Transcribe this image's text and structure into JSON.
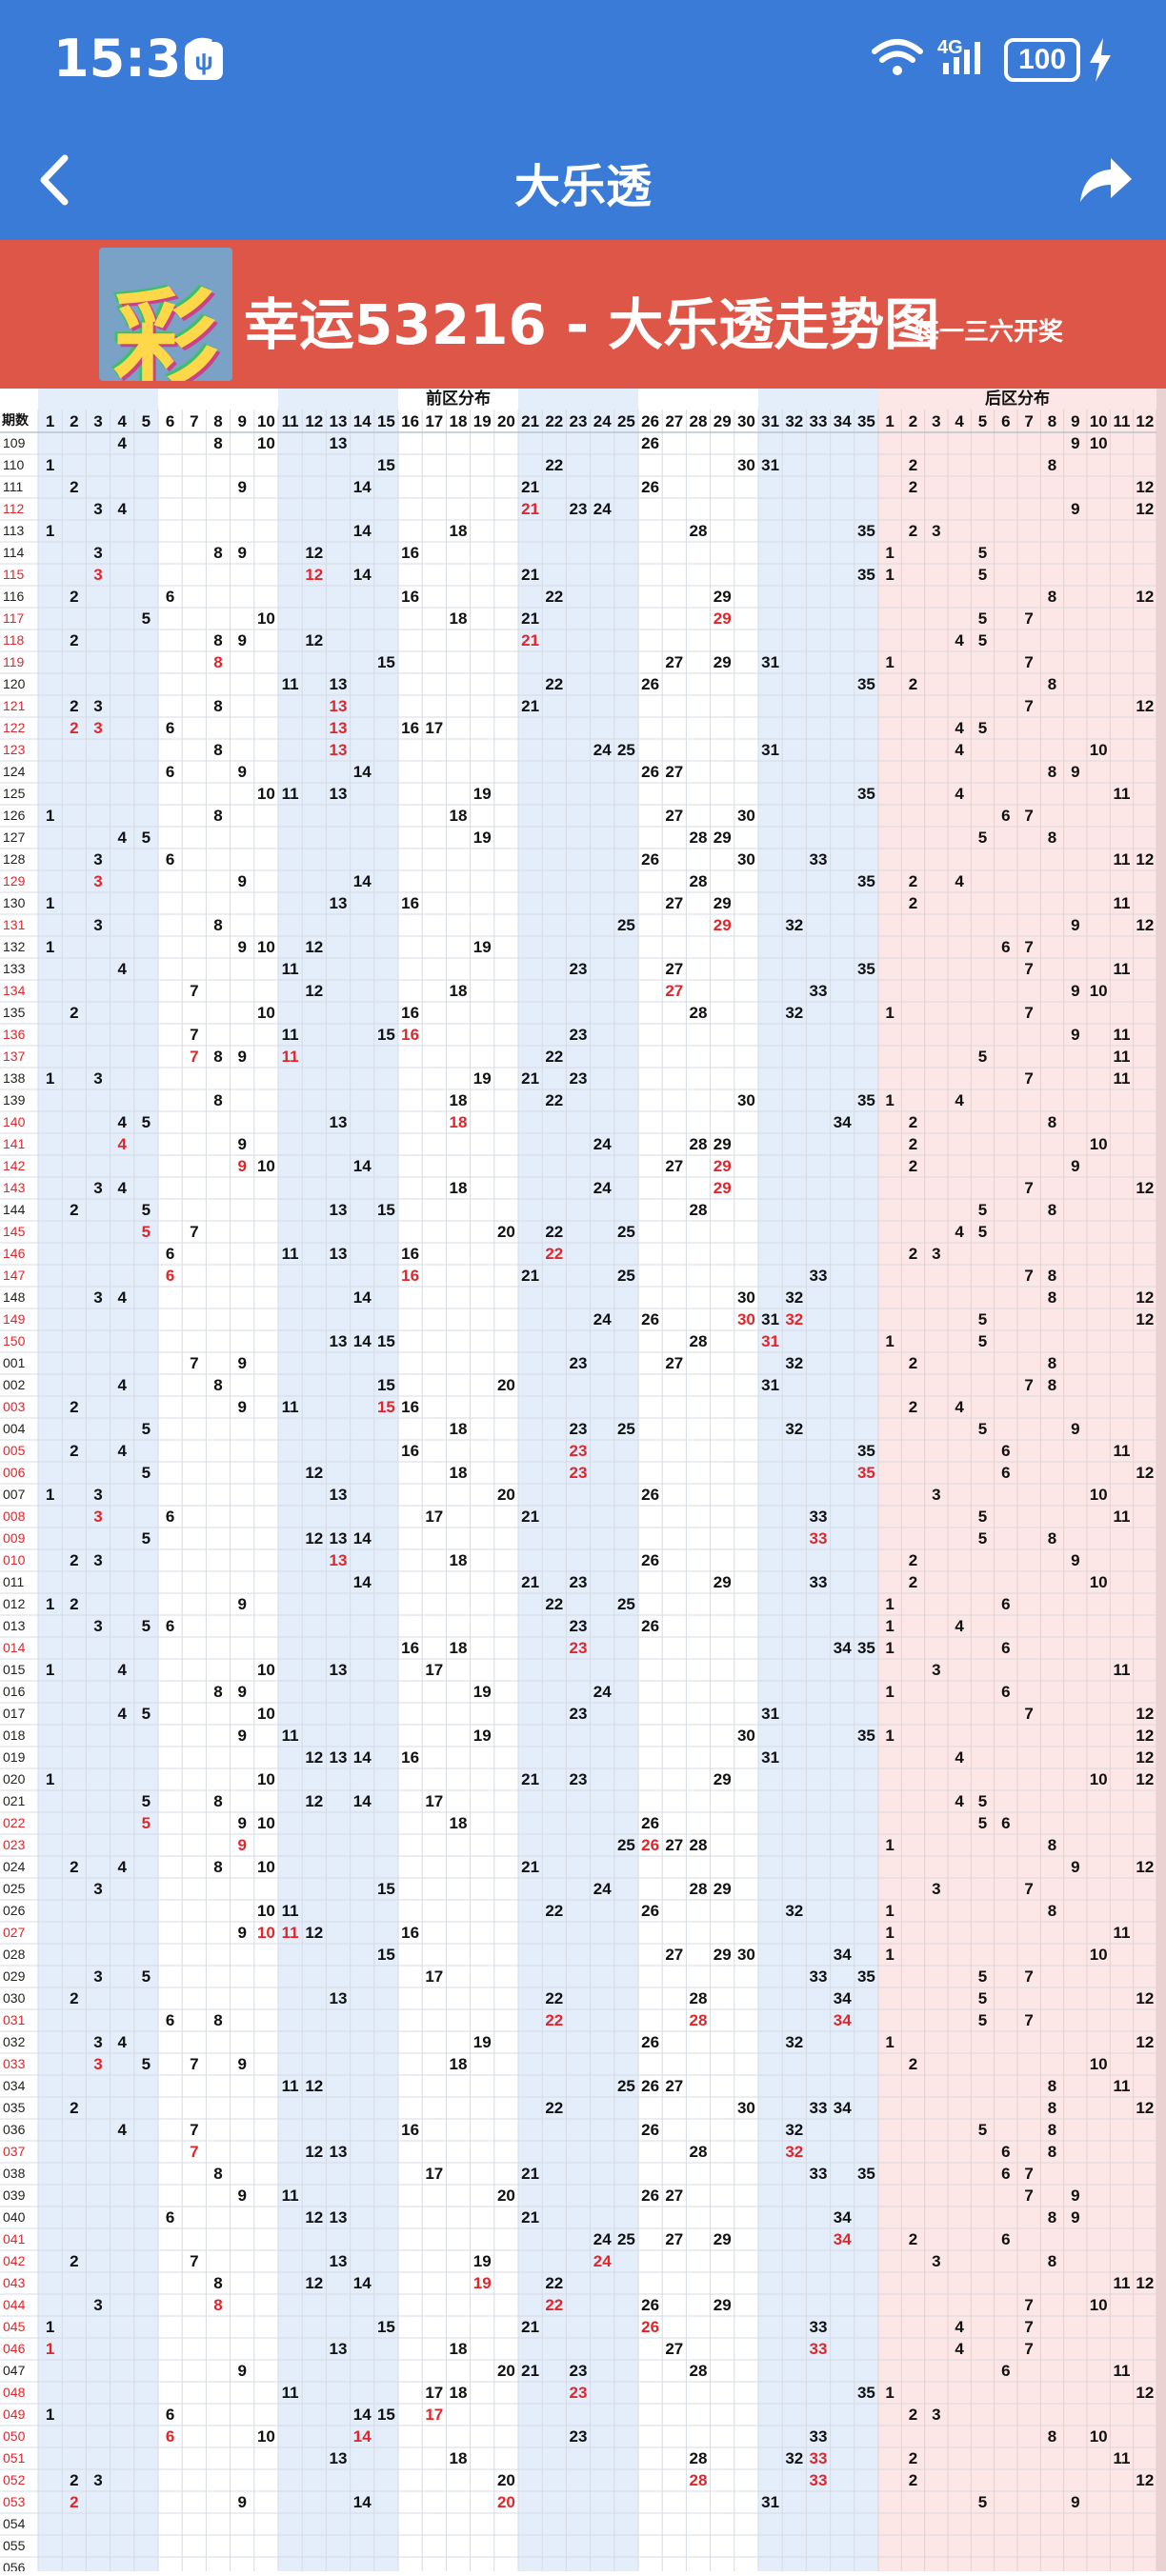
{
  "status_bar": {
    "time": "15:36",
    "usb_icon": "usb-icon",
    "network_label": "4G",
    "battery": "100",
    "icons": [
      "wifi-icon",
      "signal-icon",
      "charging-icon"
    ]
  },
  "nav": {
    "title": "大乐透",
    "back_icon": "back-arrow-icon",
    "share_icon": "share-icon"
  },
  "banner": {
    "logo_text": "彩",
    "title": "幸运53216 - 大乐透走势图",
    "subtitle": "每一三六开奖"
  },
  "table": {
    "period_label": "期数",
    "front_label": "前区分布",
    "back_label": "后区分布",
    "front_numbers": [
      "1",
      "2",
      "3",
      "4",
      "5",
      "6",
      "7",
      "8",
      "9",
      "10",
      "11",
      "12",
      "13",
      "14",
      "15",
      "16",
      "17",
      "18",
      "19",
      "20",
      "21",
      "22",
      "23",
      "24",
      "25",
      "26",
      "27",
      "28",
      "29",
      "30",
      "31",
      "32",
      "33",
      "34",
      "35"
    ],
    "back_numbers": [
      "1",
      "2",
      "3",
      "4",
      "5",
      "6",
      "7",
      "8",
      "9",
      "10",
      "11",
      "12"
    ],
    "colors": {
      "header_blue": "#3b7bd8",
      "banner_red": "#de5647",
      "front_zone_tint": "#e4eefb",
      "back_zone_tint": "#fde6e6",
      "repeat_red": "#e0262b",
      "normal_text": "#111111"
    },
    "rows": [
      {
        "p": "109",
        "f": [
          4,
          8,
          10,
          13,
          26
        ],
        "b": [
          9,
          10
        ]
      },
      {
        "p": "110",
        "f": [
          1,
          15,
          22,
          30,
          31
        ],
        "b": [
          2,
          8
        ]
      },
      {
        "p": "111",
        "f": [
          2,
          9,
          14,
          21,
          26
        ],
        "b": [
          2,
          12
        ]
      },
      {
        "p": "112",
        "f": [
          3,
          4,
          21,
          23,
          24
        ],
        "b": [
          9,
          12
        ]
      },
      {
        "p": "113",
        "f": [
          1,
          14,
          18,
          28,
          35
        ],
        "b": [
          2,
          3
        ]
      },
      {
        "p": "114",
        "f": [
          3,
          8,
          9,
          12,
          16
        ],
        "b": [
          1,
          5
        ]
      },
      {
        "p": "115",
        "f": [
          3,
          12,
          14,
          21,
          35
        ],
        "b": [
          1,
          5
        ]
      },
      {
        "p": "116",
        "f": [
          2,
          6,
          16,
          22,
          29
        ],
        "b": [
          8,
          12
        ]
      },
      {
        "p": "117",
        "f": [
          5,
          10,
          18,
          21,
          29
        ],
        "b": [
          5,
          7
        ]
      },
      {
        "p": "118",
        "f": [
          2,
          8,
          9,
          12,
          21
        ],
        "b": [
          4,
          5
        ]
      },
      {
        "p": "119",
        "f": [
          8,
          15,
          27,
          29,
          31
        ],
        "b": [
          1,
          7
        ]
      },
      {
        "p": "120",
        "f": [
          11,
          13,
          22,
          26,
          35
        ],
        "b": [
          2,
          8
        ]
      },
      {
        "p": "121",
        "f": [
          2,
          3,
          8,
          13,
          21
        ],
        "b": [
          7,
          12
        ]
      },
      {
        "p": "122",
        "f": [
          2,
          3,
          6,
          13,
          16,
          17
        ],
        "b": [
          4,
          5
        ]
      },
      {
        "p": "123",
        "f": [
          8,
          13,
          24,
          25,
          31
        ],
        "b": [
          4,
          10
        ]
      },
      {
        "p": "124",
        "f": [
          6,
          9,
          14,
          26,
          27
        ],
        "b": [
          8,
          9
        ]
      },
      {
        "p": "125",
        "f": [
          10,
          11,
          13,
          19,
          35
        ],
        "b": [
          4,
          11
        ]
      },
      {
        "p": "126",
        "f": [
          1,
          8,
          18,
          27,
          30
        ],
        "b": [
          6,
          7
        ]
      },
      {
        "p": "127",
        "f": [
          4,
          5,
          19,
          28,
          29
        ],
        "b": [
          5,
          8
        ]
      },
      {
        "p": "128",
        "f": [
          3,
          6,
          26,
          30,
          33
        ],
        "b": [
          11,
          12
        ]
      },
      {
        "p": "129",
        "f": [
          3,
          9,
          14,
          28,
          35
        ],
        "b": [
          2,
          4
        ]
      },
      {
        "p": "130",
        "f": [
          1,
          13,
          16,
          27,
          29
        ],
        "b": [
          2,
          11
        ]
      },
      {
        "p": "131",
        "f": [
          3,
          8,
          25,
          29,
          32
        ],
        "b": [
          9,
          12
        ]
      },
      {
        "p": "132",
        "f": [
          1,
          9,
          10,
          12,
          19
        ],
        "b": [
          6,
          7
        ]
      },
      {
        "p": "133",
        "f": [
          4,
          11,
          23,
          27,
          35
        ],
        "b": [
          7,
          11
        ]
      },
      {
        "p": "134",
        "f": [
          7,
          12,
          18,
          27,
          33
        ],
        "b": [
          9,
          10
        ]
      },
      {
        "p": "135",
        "f": [
          2,
          10,
          16,
          28,
          32
        ],
        "b": [
          1,
          7
        ]
      },
      {
        "p": "136",
        "f": [
          7,
          11,
          15,
          16,
          23
        ],
        "b": [
          9,
          11
        ]
      },
      {
        "p": "137",
        "f": [
          7,
          8,
          9,
          11,
          22
        ],
        "b": [
          5,
          11
        ]
      },
      {
        "p": "138",
        "f": [
          1,
          3,
          19,
          21,
          23
        ],
        "b": [
          7,
          11
        ]
      },
      {
        "p": "139",
        "f": [
          8,
          18,
          22,
          30,
          35
        ],
        "b": [
          1,
          4
        ]
      },
      {
        "p": "140",
        "f": [
          4,
          5,
          13,
          18,
          34
        ],
        "b": [
          2,
          8
        ]
      },
      {
        "p": "141",
        "f": [
          4,
          9,
          24,
          28,
          29
        ],
        "b": [
          2,
          10
        ]
      },
      {
        "p": "142",
        "f": [
          9,
          10,
          14,
          27,
          29
        ],
        "b": [
          2,
          9
        ]
      },
      {
        "p": "143",
        "f": [
          3,
          4,
          18,
          24,
          29
        ],
        "b": [
          7,
          12
        ]
      },
      {
        "p": "144",
        "f": [
          2,
          5,
          13,
          15,
          28
        ],
        "b": [
          5,
          8
        ]
      },
      {
        "p": "145",
        "f": [
          5,
          7,
          20,
          22,
          25
        ],
        "b": [
          4,
          5
        ]
      },
      {
        "p": "146",
        "f": [
          6,
          11,
          13,
          16,
          22
        ],
        "b": [
          2,
          3
        ]
      },
      {
        "p": "147",
        "f": [
          6,
          16,
          21,
          25,
          33
        ],
        "b": [
          7,
          8
        ]
      },
      {
        "p": "148",
        "f": [
          3,
          4,
          14,
          30,
          32
        ],
        "b": [
          8,
          12
        ]
      },
      {
        "p": "149",
        "f": [
          24,
          26,
          30,
          31,
          32
        ],
        "b": [
          5,
          12
        ]
      },
      {
        "p": "150",
        "f": [
          13,
          14,
          15,
          28,
          31
        ],
        "b": [
          1,
          5
        ]
      },
      {
        "p": "001",
        "f": [
          7,
          9,
          23,
          27,
          32
        ],
        "b": [
          2,
          8
        ]
      },
      {
        "p": "002",
        "f": [
          4,
          8,
          15,
          20,
          31
        ],
        "b": [
          7,
          8
        ]
      },
      {
        "p": "003",
        "f": [
          2,
          9,
          11,
          15,
          16
        ],
        "b": [
          2,
          4
        ]
      },
      {
        "p": "004",
        "f": [
          5,
          18,
          23,
          25,
          32
        ],
        "b": [
          5,
          9
        ]
      },
      {
        "p": "005",
        "f": [
          2,
          4,
          16,
          23,
          35
        ],
        "b": [
          6,
          11
        ]
      },
      {
        "p": "006",
        "f": [
          5,
          12,
          18,
          23,
          35
        ],
        "b": [
          6,
          12
        ]
      },
      {
        "p": "007",
        "f": [
          1,
          3,
          13,
          20,
          26
        ],
        "b": [
          3,
          10
        ]
      },
      {
        "p": "008",
        "f": [
          3,
          6,
          17,
          21,
          33
        ],
        "b": [
          5,
          11
        ]
      },
      {
        "p": "009",
        "f": [
          5,
          12,
          13,
          14,
          33
        ],
        "b": [
          5,
          8
        ]
      },
      {
        "p": "010",
        "f": [
          2,
          3,
          13,
          18,
          26
        ],
        "b": [
          2,
          9
        ]
      },
      {
        "p": "011",
        "f": [
          14,
          21,
          23,
          29,
          33
        ],
        "b": [
          2,
          10
        ]
      },
      {
        "p": "012",
        "f": [
          1,
          2,
          9,
          22,
          25
        ],
        "b": [
          1,
          6
        ]
      },
      {
        "p": "013",
        "f": [
          3,
          5,
          6,
          23,
          26
        ],
        "b": [
          1,
          4
        ]
      },
      {
        "p": "014",
        "f": [
          16,
          18,
          23,
          34,
          35
        ],
        "b": [
          1,
          6
        ]
      },
      {
        "p": "015",
        "f": [
          1,
          4,
          10,
          13,
          17
        ],
        "b": [
          3,
          11
        ]
      },
      {
        "p": "016",
        "f": [
          8,
          9,
          19,
          24
        ],
        "b": [
          1,
          6
        ]
      },
      {
        "p": "017",
        "f": [
          4,
          5,
          10,
          23,
          31
        ],
        "b": [
          7,
          12
        ]
      },
      {
        "p": "018",
        "f": [
          9,
          11,
          19,
          30,
          35
        ],
        "b": [
          1,
          12
        ]
      },
      {
        "p": "019",
        "f": [
          12,
          13,
          14,
          16,
          31
        ],
        "b": [
          4,
          12
        ]
      },
      {
        "p": "020",
        "f": [
          1,
          10,
          21,
          23,
          29
        ],
        "b": [
          10,
          12
        ]
      },
      {
        "p": "021",
        "f": [
          5,
          8,
          12,
          14,
          17
        ],
        "b": [
          4,
          5
        ]
      },
      {
        "p": "022",
        "f": [
          5,
          9,
          10,
          18,
          26
        ],
        "b": [
          5,
          6
        ]
      },
      {
        "p": "023",
        "f": [
          9,
          25,
          26,
          27,
          28
        ],
        "b": [
          1,
          8
        ]
      },
      {
        "p": "024",
        "f": [
          2,
          4,
          8,
          10,
          21
        ],
        "b": [
          9,
          12
        ]
      },
      {
        "p": "025",
        "f": [
          3,
          15,
          24,
          28,
          29
        ],
        "b": [
          3,
          7
        ]
      },
      {
        "p": "026",
        "f": [
          10,
          11,
          22,
          26,
          32
        ],
        "b": [
          1,
          8
        ]
      },
      {
        "p": "027",
        "f": [
          9,
          10,
          11,
          12,
          16
        ],
        "b": [
          1,
          11
        ]
      },
      {
        "p": "028",
        "f": [
          15,
          27,
          29,
          30,
          34
        ],
        "b": [
          1,
          10
        ]
      },
      {
        "p": "029",
        "f": [
          3,
          5,
          17,
          33,
          35
        ],
        "b": [
          5,
          7
        ]
      },
      {
        "p": "030",
        "f": [
          2,
          13,
          22,
          28,
          34
        ],
        "b": [
          5,
          12
        ]
      },
      {
        "p": "031",
        "f": [
          6,
          8,
          22,
          28,
          34
        ],
        "b": [
          5,
          7
        ]
      },
      {
        "p": "032",
        "f": [
          3,
          4,
          19,
          26,
          32
        ],
        "b": [
          1,
          12
        ]
      },
      {
        "p": "033",
        "f": [
          3,
          5,
          7,
          9,
          18
        ],
        "b": [
          2,
          10
        ]
      },
      {
        "p": "034",
        "f": [
          11,
          12,
          25,
          26,
          27
        ],
        "b": [
          8,
          11
        ]
      },
      {
        "p": "035",
        "f": [
          2,
          22,
          30,
          33,
          34
        ],
        "b": [
          8,
          12
        ]
      },
      {
        "p": "036",
        "f": [
          4,
          7,
          16,
          26,
          32
        ],
        "b": [
          5,
          8
        ]
      },
      {
        "p": "037",
        "f": [
          7,
          12,
          13,
          28,
          32
        ],
        "b": [
          6,
          8
        ]
      },
      {
        "p": "038",
        "f": [
          8,
          17,
          21,
          33,
          35
        ],
        "b": [
          6,
          7
        ]
      },
      {
        "p": "039",
        "f": [
          9,
          11,
          20,
          26,
          27
        ],
        "b": [
          7,
          9
        ]
      },
      {
        "p": "040",
        "f": [
          6,
          12,
          13,
          21,
          34
        ],
        "b": [
          8,
          9
        ]
      },
      {
        "p": "041",
        "f": [
          24,
          25,
          27,
          29,
          34
        ],
        "b": [
          2,
          6
        ]
      },
      {
        "p": "042",
        "f": [
          2,
          7,
          13,
          19,
          24
        ],
        "b": [
          3,
          8
        ]
      },
      {
        "p": "043",
        "f": [
          8,
          12,
          14,
          19,
          22
        ],
        "b": [
          11,
          12
        ]
      },
      {
        "p": "044",
        "f": [
          3,
          8,
          22,
          26,
          29
        ],
        "b": [
          7,
          10
        ]
      },
      {
        "p": "045",
        "f": [
          1,
          15,
          21,
          26,
          33
        ],
        "b": [
          4,
          7
        ]
      },
      {
        "p": "046",
        "f": [
          1,
          13,
          18,
          27,
          33
        ],
        "b": [
          4,
          7
        ]
      },
      {
        "p": "047",
        "f": [
          9,
          20,
          21,
          23,
          28
        ],
        "b": [
          6,
          11
        ]
      },
      {
        "p": "048",
        "f": [
          11,
          17,
          18,
          23,
          35
        ],
        "b": [
          1,
          12
        ]
      },
      {
        "p": "049",
        "f": [
          1,
          6,
          14,
          15,
          17
        ],
        "b": [
          2,
          3
        ]
      },
      {
        "p": "050",
        "f": [
          6,
          10,
          14,
          23,
          33
        ],
        "b": [
          8,
          10
        ]
      },
      {
        "p": "051",
        "f": [
          13,
          18,
          28,
          32,
          33
        ],
        "b": [
          2,
          11
        ]
      },
      {
        "p": "052",
        "f": [
          2,
          3,
          20,
          28,
          33
        ],
        "b": [
          2,
          12
        ]
      },
      {
        "p": "053",
        "f": [
          2,
          9,
          14,
          20,
          31
        ],
        "b": [
          5,
          9
        ]
      },
      {
        "p": "054",
        "f": [],
        "b": []
      },
      {
        "p": "055",
        "f": [],
        "b": []
      },
      {
        "p": "056",
        "f": [],
        "b": []
      }
    ]
  }
}
